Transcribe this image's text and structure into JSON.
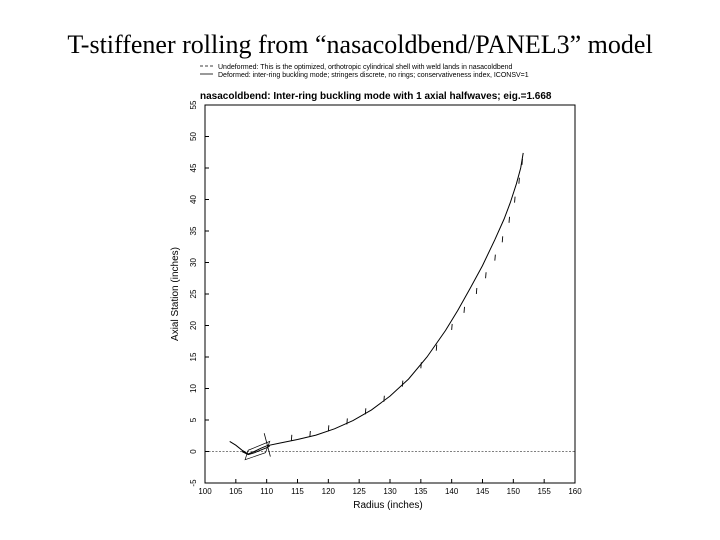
{
  "slide": {
    "title": "T-stiffener rolling from “nasacoldbend/PANEL3” model"
  },
  "chart_data": {
    "type": "line",
    "title": "nasacoldbend: Inter-ring buckling mode with 1 axial halfwaves; eig.=1.668",
    "legend": {
      "placement": "top",
      "entries": [
        {
          "label": "Undeformed: This is the optimized, orthotropic cylindrical shell with weld lands in nasacoldbend",
          "style": "dashed"
        },
        {
          "label": "Deformed: inter-ring buckling mode; stringers discrete, no rings; conservativeness index, ICONSV=1",
          "style": "solid"
        }
      ]
    },
    "xlabel": "Radius (inches)",
    "ylabel": "Axial Station (inches)",
    "xlim": [
      100,
      160
    ],
    "ylim": [
      -5,
      55
    ],
    "xticks": [
      "100",
      "105",
      "110",
      "115",
      "120",
      "125",
      "130",
      "135",
      "140",
      "145",
      "150",
      "155",
      "160"
    ],
    "yticks": [
      "-5",
      "0",
      "5",
      "10",
      "15",
      "20",
      "25",
      "30",
      "35",
      "40",
      "45",
      "50",
      "55"
    ],
    "grid": false,
    "series": [
      {
        "style": "dashed",
        "x": [
          100,
          160
        ],
        "y": [
          0,
          0
        ]
      },
      {
        "style": "solid",
        "x": [
          104,
          105,
          106,
          107,
          108,
          109,
          110,
          112,
          115,
          118,
          121,
          124,
          127,
          130,
          133,
          136,
          139,
          141,
          143,
          145,
          147,
          148.5,
          149.5,
          150.5,
          151.2,
          151.6
        ],
        "y": [
          1.6,
          1.0,
          0.2,
          -0.4,
          0.0,
          0.5,
          0.9,
          1.3,
          1.9,
          2.6,
          3.6,
          4.9,
          6.6,
          8.8,
          11.5,
          15.0,
          19.2,
          22.4,
          25.9,
          29.5,
          33.6,
          36.9,
          39.5,
          42.5,
          45.0,
          47.4
        ]
      },
      {
        "style": "solid",
        "x": [
          106,
          107,
          108,
          109,
          110,
          110.5
        ],
        "y": [
          0.0,
          -0.5,
          -0.2,
          0.2,
          0.6,
          0.9
        ]
      }
    ],
    "stiffener_ticks": {
      "x": [
        114,
        117,
        120,
        123,
        126,
        129,
        132,
        135,
        137.5,
        140,
        142,
        144,
        145.5,
        147,
        148.2,
        149.3,
        150.2,
        150.9,
        151.4
      ],
      "y": [
        1.7,
        2.3,
        3.2,
        4.3,
        5.9,
        7.9,
        10.3,
        13.2,
        16.0,
        19.3,
        22.0,
        25.0,
        27.5,
        30.3,
        33.2,
        36.3,
        39.5,
        42.5,
        45.5
      ]
    }
  }
}
